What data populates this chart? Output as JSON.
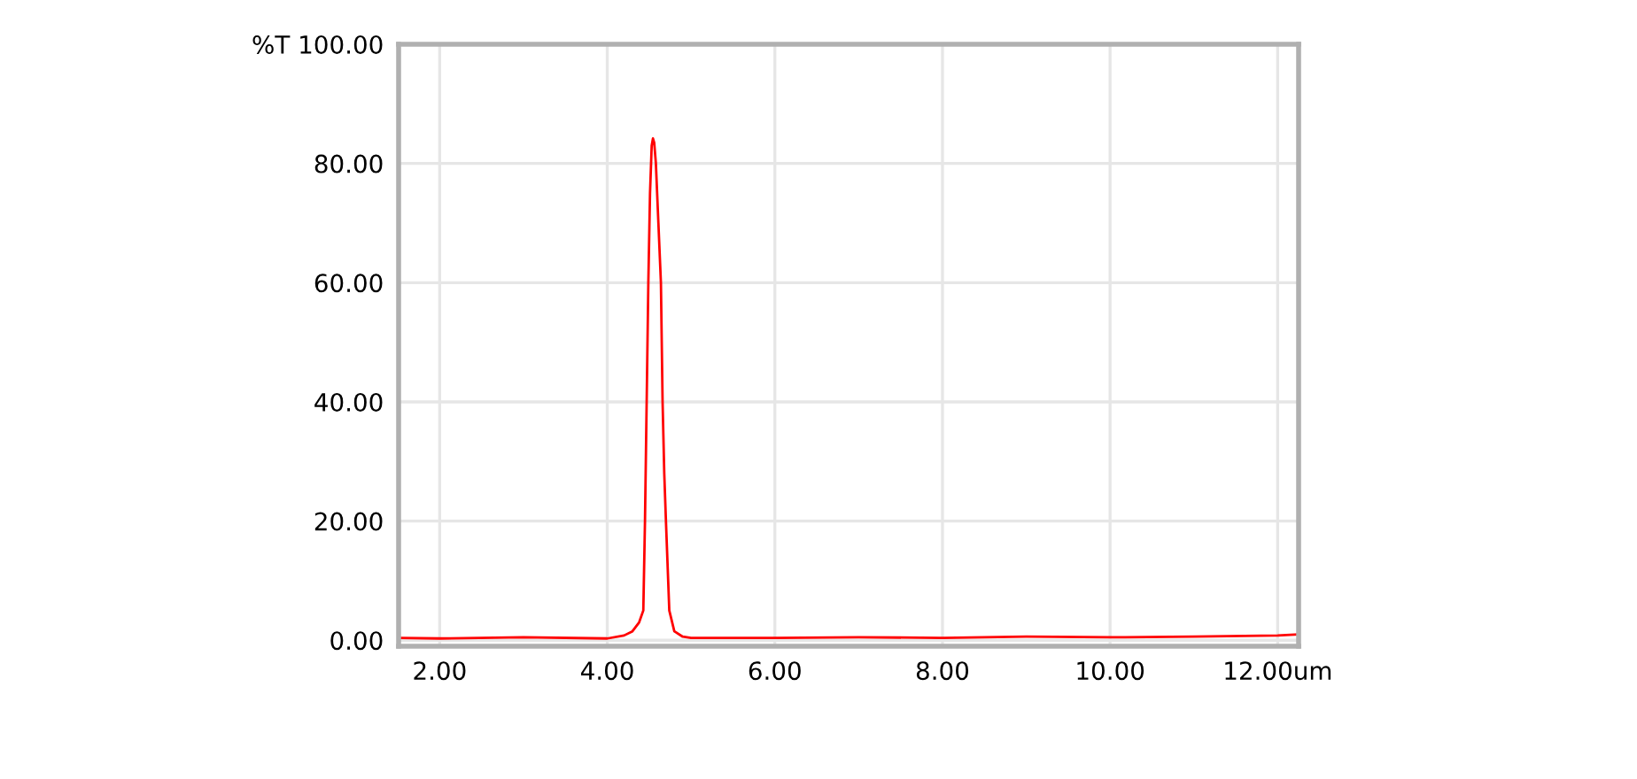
{
  "chart_data": {
    "type": "line",
    "x": [
      1.52,
      2.0,
      3.0,
      4.0,
      4.2,
      4.3,
      4.38,
      4.43,
      4.45,
      4.47,
      4.49,
      4.51,
      4.53,
      4.545,
      4.56,
      4.58,
      4.61,
      4.64,
      4.66,
      4.68,
      4.7,
      4.74,
      4.8,
      4.9,
      5.0,
      6.0,
      7.0,
      8.0,
      9.0,
      10.0,
      11.0,
      12.0,
      12.25
    ],
    "series": [
      {
        "color": "#ff0000",
        "values": [
          0.4,
          0.3,
          0.5,
          0.3,
          0.8,
          1.5,
          3,
          5,
          20,
          40,
          60,
          75,
          83,
          84.2,
          83.5,
          80,
          70,
          60,
          40,
          28,
          20,
          5,
          1.5,
          0.6,
          0.4,
          0.4,
          0.5,
          0.4,
          0.6,
          0.5,
          0.6,
          0.8,
          1.0
        ]
      }
    ],
    "xlim": [
      1.51,
      12.25
    ],
    "ylim": [
      -1,
      100
    ],
    "xticks": [
      {
        "value": 2,
        "label": "2.00"
      },
      {
        "value": 4,
        "label": "4.00"
      },
      {
        "value": 6,
        "label": "6.00"
      },
      {
        "value": 8,
        "label": "8.00"
      },
      {
        "value": 10,
        "label": "10.00"
      },
      {
        "value": 12,
        "label": "12.00um"
      }
    ],
    "yticks": [
      {
        "value": 0,
        "label": "0.00"
      },
      {
        "value": 20,
        "label": "20.00"
      },
      {
        "value": 40,
        "label": "40.00"
      },
      {
        "value": 60,
        "label": "60.00"
      },
      {
        "value": 80,
        "label": "80.00"
      },
      {
        "value": 100,
        "label": "%T 100.00"
      }
    ],
    "grid": true,
    "marker": "none",
    "line_style": "solid"
  }
}
